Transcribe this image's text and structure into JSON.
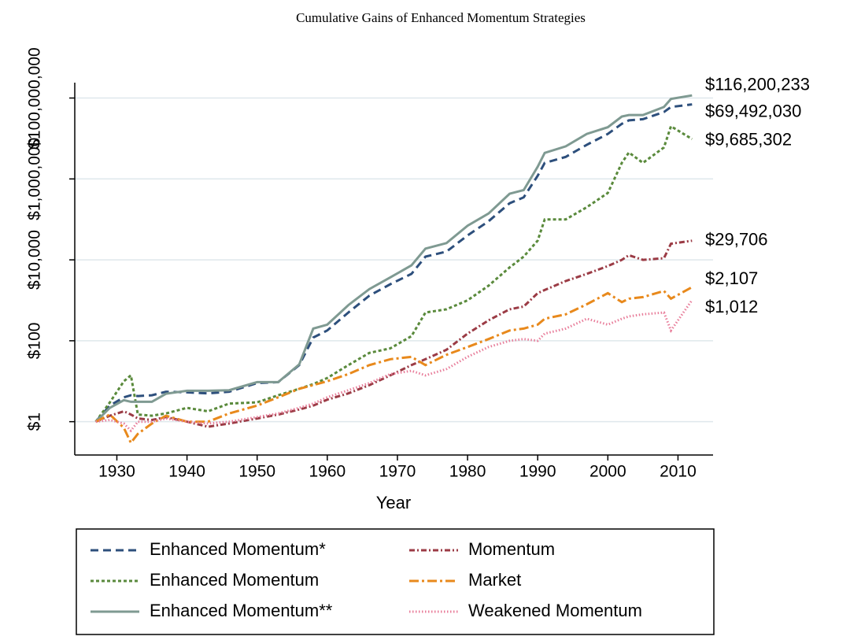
{
  "chart_data": {
    "type": "line",
    "title": "Cumulative Gains of Enhanced Momentum Strategies",
    "x_label": "Year",
    "yscale": "log",
    "grid": true,
    "legend_position": "bottom",
    "xlim": [
      1924,
      2015
    ],
    "xticks": [
      1930,
      1940,
      1950,
      1960,
      1970,
      1980,
      1990,
      2000,
      2010
    ],
    "ylim": [
      0.15,
      300000000
    ],
    "yticks": [
      {
        "value": 1,
        "label": "$1"
      },
      {
        "value": 100,
        "label": "$100"
      },
      {
        "value": 10000,
        "label": "$10,000"
      },
      {
        "value": 1000000,
        "label": "$1,000,000"
      },
      {
        "value": 100000000,
        "label": "$100,000,000"
      }
    ],
    "x": [
      1927,
      1929,
      1931,
      1932,
      1933,
      1935,
      1937,
      1940,
      1943,
      1946,
      1950,
      1953,
      1956,
      1958,
      1960,
      1963,
      1966,
      1969,
      1972,
      1974,
      1977,
      1980,
      1983,
      1986,
      1988,
      1990,
      1991,
      1994,
      1997,
      2000,
      2002,
      2003,
      2005,
      2008,
      2009,
      2012
    ],
    "series": [
      {
        "name": "Enhanced Momentum*",
        "color": "#2d4f7c",
        "line_style": "dashed",
        "values": [
          1,
          2.5,
          4,
          4.5,
          4.3,
          4.5,
          5.5,
          5.3,
          5,
          5.5,
          9,
          9.5,
          25,
          120,
          180,
          500,
          1300,
          2500,
          4500,
          12000,
          16000,
          40000,
          90000,
          250000,
          350000,
          1200000,
          2500000,
          3500000,
          7000000,
          13000000,
          23000000,
          28000000,
          30000000,
          45000000,
          60000000,
          69492030
        ],
        "value_labels": [
          null,
          null,
          null,
          null,
          null,
          null,
          null,
          null,
          null,
          null,
          null,
          null,
          null,
          null,
          null,
          null,
          null,
          null,
          null,
          null,
          null,
          null,
          null,
          null,
          null,
          null,
          null,
          null,
          null,
          null,
          null,
          null,
          null,
          null,
          null,
          "$69,492,030"
        ]
      },
      {
        "name": "Enhanced Momentum",
        "color": "#5a8a3c",
        "line_style": "dotted",
        "values": [
          1,
          3,
          10,
          14,
          1.5,
          1.4,
          1.6,
          2.2,
          1.8,
          2.8,
          3,
          4.5,
          6.5,
          8.5,
          12,
          25,
          50,
          65,
          130,
          500,
          600,
          1000,
          2300,
          6500,
          12000,
          30000,
          100000,
          100000,
          200000,
          450000,
          2500000,
          4500000,
          2500000,
          6000000,
          20000000,
          9685302
        ],
        "value_labels": [
          null,
          null,
          null,
          null,
          null,
          null,
          null,
          null,
          null,
          null,
          null,
          null,
          null,
          null,
          null,
          null,
          null,
          null,
          null,
          null,
          null,
          null,
          null,
          null,
          null,
          null,
          null,
          null,
          null,
          null,
          null,
          null,
          null,
          null,
          null,
          "$9,685,302"
        ]
      },
      {
        "name": "Enhanced Momentum**",
        "color": "#7f9a92",
        "line_style": "solid",
        "values": [
          1,
          2.2,
          3.4,
          3.1,
          3.1,
          3.1,
          4.9,
          5.8,
          5.8,
          6,
          9.5,
          9.5,
          26,
          200,
          250,
          760,
          1900,
          3700,
          7300,
          19000,
          26000,
          70000,
          140000,
          430000,
          530000,
          2000000,
          4400000,
          6400000,
          13000000,
          19000000,
          35000000,
          38000000,
          38000000,
          60000000,
          95000000,
          116200233
        ],
        "value_labels": [
          null,
          null,
          null,
          null,
          null,
          null,
          null,
          null,
          null,
          null,
          null,
          null,
          null,
          null,
          null,
          null,
          null,
          null,
          null,
          null,
          null,
          null,
          null,
          null,
          null,
          null,
          null,
          null,
          null,
          null,
          null,
          null,
          null,
          null,
          null,
          "$116,200,233"
        ]
      },
      {
        "name": "Momentum",
        "color": "#9b3b45",
        "line_style": "dashdot",
        "values": [
          1,
          1.4,
          1.8,
          1.5,
          1.2,
          1.1,
          1.3,
          1,
          0.75,
          0.9,
          1.2,
          1.5,
          2,
          2.5,
          3.5,
          5,
          8,
          14,
          25,
          35,
          60,
          150,
          320,
          600,
          700,
          1500,
          1800,
          3000,
          4500,
          7000,
          10000,
          13000,
          10000,
          11000,
          25000,
          29706
        ],
        "value_labels": [
          null,
          null,
          null,
          null,
          null,
          null,
          null,
          null,
          null,
          null,
          null,
          null,
          null,
          null,
          null,
          null,
          null,
          null,
          null,
          null,
          null,
          null,
          null,
          null,
          null,
          null,
          null,
          null,
          null,
          null,
          null,
          null,
          null,
          null,
          null,
          "$29,706"
        ]
      },
      {
        "name": "Market",
        "color": "#e8891c",
        "line_style": "longdashdot",
        "values": [
          1,
          1.5,
          0.7,
          0.3,
          0.5,
          0.9,
          1.4,
          1,
          1,
          1.6,
          2.5,
          4,
          6.5,
          8,
          10,
          15,
          25,
          35,
          40,
          25,
          45,
          70,
          110,
          180,
          200,
          250,
          350,
          450,
          800,
          1500,
          900,
          1100,
          1200,
          1700,
          1100,
          2107
        ],
        "value_labels": [
          null,
          null,
          null,
          null,
          null,
          null,
          null,
          null,
          null,
          null,
          null,
          null,
          null,
          null,
          null,
          null,
          null,
          null,
          null,
          null,
          null,
          null,
          null,
          null,
          null,
          null,
          null,
          null,
          null,
          null,
          null,
          null,
          null,
          null,
          null,
          "$2,107"
        ]
      },
      {
        "name": "Weakened Momentum",
        "color": "#e87d9a",
        "line_style": "finedotted",
        "values": [
          1,
          1.1,
          0.9,
          0.6,
          1,
          1,
          1.2,
          1,
          0.9,
          1,
          1.3,
          1.6,
          2.2,
          2.8,
          4,
          6,
          9,
          15,
          18,
          14,
          20,
          40,
          70,
          100,
          110,
          100,
          150,
          200,
          350,
          250,
          350,
          400,
          450,
          500,
          180,
          1012
        ],
        "value_labels": [
          null,
          null,
          null,
          null,
          null,
          null,
          null,
          null,
          null,
          null,
          null,
          null,
          null,
          null,
          null,
          null,
          null,
          null,
          null,
          null,
          null,
          null,
          null,
          null,
          null,
          null,
          null,
          null,
          null,
          null,
          null,
          null,
          null,
          null,
          null,
          "$1,012"
        ]
      }
    ]
  }
}
